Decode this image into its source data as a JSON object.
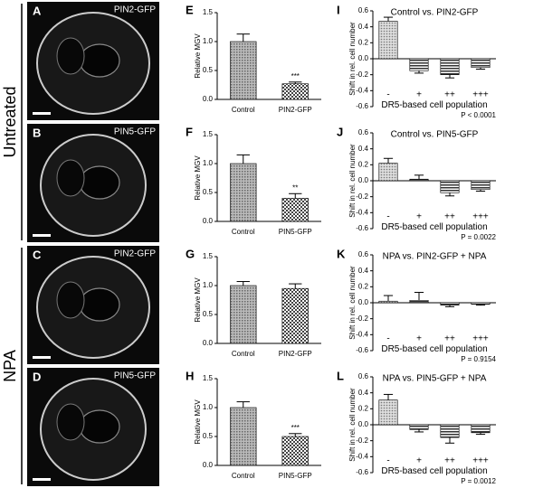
{
  "row_labels": [
    "Untreated",
    "NPA"
  ],
  "micrographs": [
    {
      "letter": "A",
      "label": "PIN2-GFP"
    },
    {
      "letter": "B",
      "label": "PIN5-GFP"
    },
    {
      "letter": "C",
      "label": "PIN2-GFP"
    },
    {
      "letter": "D",
      "label": "PIN5-GFP"
    }
  ],
  "chart_data": [
    {
      "type": "bar",
      "panel": "E",
      "ylabel": "Relative MGV",
      "categories": [
        "Control",
        "PIN2-GFP"
      ],
      "values": [
        1.0,
        0.27
      ],
      "errors": [
        0.13,
        0.03
      ],
      "annotations": [
        {
          "text": "***",
          "category": "PIN2-GFP"
        }
      ],
      "ylim": [
        0,
        1.5
      ],
      "yticks": [
        {
          "value": 0,
          "label": "0.0"
        },
        0.5,
        {
          "value": 1,
          "label": "1.0"
        },
        1.5
      ]
    },
    {
      "type": "bar",
      "panel": "F",
      "ylabel": "Relative MGV",
      "categories": [
        "Control",
        "PIN5-GFP"
      ],
      "values": [
        1.0,
        0.4
      ],
      "errors": [
        0.15,
        0.08
      ],
      "annotations": [
        {
          "text": "**",
          "category": "PIN5-GFP"
        }
      ],
      "ylim": [
        0,
        1.5
      ],
      "yticks": [
        {
          "value": 0,
          "label": "0.0"
        },
        0.5,
        {
          "value": 1,
          "label": "1.0"
        },
        1.5
      ]
    },
    {
      "type": "bar",
      "panel": "G",
      "ylabel": "Relative MGV",
      "categories": [
        "Control",
        "PIN2-GFP"
      ],
      "values": [
        1.0,
        0.95
      ],
      "errors": [
        0.07,
        0.08
      ],
      "ylim": [
        0,
        1.5
      ],
      "yticks": [
        {
          "value": 0,
          "label": "0.0"
        },
        0.5,
        {
          "value": 1,
          "label": "1.0"
        },
        1.5
      ]
    },
    {
      "type": "bar",
      "panel": "H",
      "ylabel": "Relative MGV",
      "categories": [
        "Control",
        "PIN5-GFP"
      ],
      "values": [
        1.0,
        0.5
      ],
      "errors": [
        0.1,
        0.05
      ],
      "annotations": [
        {
          "text": "***",
          "category": "PIN5-GFP"
        }
      ],
      "ylim": [
        0,
        1.5
      ],
      "yticks": [
        {
          "value": 0,
          "label": "0.0"
        },
        0.5,
        {
          "value": 1,
          "label": "1.0"
        },
        1.5
      ]
    },
    {
      "type": "bar",
      "panel": "I",
      "title": "Control vs. PIN2-GFP",
      "xlabel": "DR5-based cell population",
      "ylabel": "Shift in rel. cell number",
      "note": "P < 0.0001",
      "categories": [
        "-",
        "+",
        "++",
        "+++"
      ],
      "values": [
        0.47,
        -0.15,
        -0.2,
        -0.11
      ],
      "errors": [
        0.05,
        0.03,
        0.04,
        0.02
      ],
      "ylim": [
        -0.6,
        0.6
      ],
      "yticks": [
        -0.6,
        -0.4,
        -0.2,
        {
          "value": 0,
          "label": "0.0"
        },
        0.2,
        0.4,
        0.6
      ]
    },
    {
      "type": "bar",
      "panel": "J",
      "title": "Control vs. PIN5-GFP",
      "xlabel": "DR5-based cell population",
      "ylabel": "Shift in rel. cell number",
      "note": "P = 0.0022",
      "categories": [
        "-",
        "+",
        "++",
        "+++"
      ],
      "values": [
        0.22,
        0.02,
        -0.15,
        -0.11
      ],
      "errors": [
        0.06,
        0.05,
        0.04,
        0.02
      ],
      "ylim": [
        -0.6,
        0.6
      ],
      "yticks": [
        -0.6,
        -0.4,
        -0.2,
        {
          "value": 0,
          "label": "0.0"
        },
        0.2,
        0.4,
        0.6
      ]
    },
    {
      "type": "bar",
      "panel": "K",
      "title": "NPA vs. PIN2-GFP + NPA",
      "xlabel": "DR5-based cell population",
      "ylabel": "Shift in rel. cell number",
      "note": "P = 0.9154",
      "categories": [
        "-",
        "+",
        "++",
        "+++"
      ],
      "values": [
        0.02,
        0.03,
        -0.03,
        -0.02
      ],
      "errors": [
        0.07,
        0.1,
        0.02,
        0.01
      ],
      "ylim": [
        -0.6,
        0.6
      ],
      "yticks": [
        -0.6,
        -0.4,
        -0.2,
        {
          "value": 0,
          "label": "0.0"
        },
        0.2,
        0.4,
        0.6
      ]
    },
    {
      "type": "bar",
      "panel": "L",
      "title": "NPA vs. PIN5-GFP + NPA",
      "xlabel": "DR5-based cell population",
      "ylabel": "Shift in rel. cell number",
      "note": "P = 0.0012",
      "categories": [
        "-",
        "+",
        "++",
        "+++"
      ],
      "values": [
        0.31,
        -0.06,
        -0.16,
        -0.1
      ],
      "errors": [
        0.07,
        0.03,
        0.07,
        0.02
      ],
      "ylim": [
        -0.6,
        0.6
      ],
      "yticks": [
        -0.6,
        -0.4,
        -0.2,
        {
          "value": 0,
          "label": "0.0"
        },
        0.2,
        0.4,
        0.6
      ]
    }
  ]
}
